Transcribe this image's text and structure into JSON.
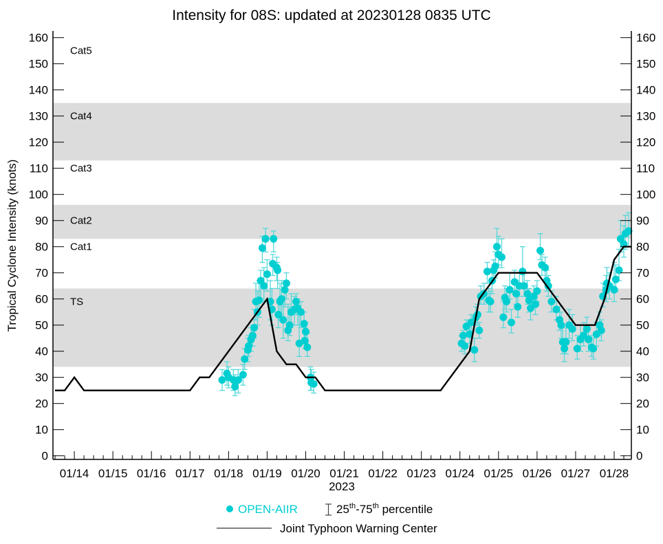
{
  "chart_data": {
    "type": "scatter",
    "title": "Intensity for 08S: updated at 20230128 0835 UTC",
    "ylabel": "Tropical Cyclone Intensity (knots)",
    "xlabel": "2023",
    "ylim": [
      0,
      160
    ],
    "yticks": [
      0,
      10,
      20,
      30,
      40,
      50,
      60,
      70,
      80,
      90,
      100,
      110,
      120,
      130,
      140,
      150,
      160
    ],
    "x_units": "hours since 2023-01-14 00 UTC",
    "xlim": [
      -13.3,
      346.7
    ],
    "xticks": [
      {
        "h": 0,
        "label": "01/14"
      },
      {
        "h": 24,
        "label": "01/15"
      },
      {
        "h": 48,
        "label": "01/16"
      },
      {
        "h": 72,
        "label": "01/17"
      },
      {
        "h": 96,
        "label": "01/18"
      },
      {
        "h": 120,
        "label": "01/19"
      },
      {
        "h": 144,
        "label": "01/20"
      },
      {
        "h": 168,
        "label": "01/21"
      },
      {
        "h": 192,
        "label": "01/22"
      },
      {
        "h": 216,
        "label": "01/23"
      },
      {
        "h": 240,
        "label": "01/24"
      },
      {
        "h": 264,
        "label": "01/25"
      },
      {
        "h": 288,
        "label": "01/26"
      },
      {
        "h": 312,
        "label": "01/27"
      },
      {
        "h": 336,
        "label": "01/28"
      }
    ],
    "bands": [
      {
        "label": "Cat5",
        "range": [
          135,
          160
        ],
        "shaded": false,
        "label_at": 155
      },
      {
        "label": "Cat4",
        "range": [
          113,
          135
        ],
        "shaded": true,
        "label_at": 130
      },
      {
        "label": "Cat3",
        "range": [
          96,
          113
        ],
        "shaded": false,
        "label_at": 110
      },
      {
        "label": "Cat2",
        "range": [
          83,
          96
        ],
        "shaded": true,
        "label_at": 90
      },
      {
        "label": "Cat1",
        "range": [
          64,
          83
        ],
        "shaded": false,
        "label_at": 80
      },
      {
        "label": "TS",
        "range": [
          34,
          64
        ],
        "shaded": true,
        "label_at": 59
      }
    ],
    "colors": {
      "aiir": "#00CED1",
      "aiir_err": "#55D8DA",
      "jtwc": "#000000",
      "band": "#DCDCDC"
    },
    "series": [
      {
        "name": "OPEN-AIIR",
        "kind": "points [hour, median, p25, p75]",
        "points": [
          [
            92,
            29,
            25,
            33
          ],
          [
            95,
            31.5,
            27,
            36
          ],
          [
            96,
            30,
            26,
            34
          ],
          [
            99,
            29,
            25,
            33
          ],
          [
            100,
            26.5,
            23,
            31
          ],
          [
            102,
            29,
            24,
            33
          ],
          [
            105,
            31,
            27,
            35
          ],
          [
            106,
            37,
            33,
            41
          ],
          [
            108,
            40.5,
            36,
            45
          ],
          [
            108.5,
            42,
            38,
            46
          ],
          [
            110,
            44.5,
            40,
            49
          ],
          [
            111,
            46,
            42,
            50
          ],
          [
            112,
            49,
            45,
            56
          ],
          [
            114,
            55,
            50,
            63
          ],
          [
            113,
            59,
            52,
            66
          ],
          [
            115,
            59.5,
            53,
            67
          ],
          [
            116,
            67,
            60,
            71
          ],
          [
            118,
            65,
            59,
            72
          ],
          [
            117,
            79.5,
            74,
            84
          ],
          [
            119,
            83,
            78,
            87
          ],
          [
            120,
            69.5,
            63,
            75
          ],
          [
            122,
            59,
            52,
            67
          ],
          [
            123,
            56,
            50,
            64
          ],
          [
            124,
            83,
            78,
            86
          ],
          [
            123.5,
            73.5,
            69,
            77
          ],
          [
            126,
            72,
            67,
            76
          ],
          [
            126.5,
            71,
            64,
            74
          ],
          [
            127,
            54,
            49,
            60
          ],
          [
            128,
            59,
            52,
            66
          ],
          [
            129,
            60,
            54,
            67
          ],
          [
            130,
            52,
            45,
            58
          ],
          [
            131,
            63.5,
            57,
            67
          ],
          [
            132,
            66,
            60,
            70
          ],
          [
            134,
            50,
            46,
            57
          ],
          [
            133,
            48,
            44,
            58
          ],
          [
            135,
            55,
            49,
            62
          ],
          [
            137,
            56,
            50,
            61
          ],
          [
            138,
            59,
            54,
            62
          ],
          [
            139,
            56.5,
            50,
            60
          ],
          [
            141,
            55,
            49,
            59
          ],
          [
            140,
            43,
            38,
            55
          ],
          [
            143,
            50.5,
            45,
            55
          ],
          [
            143.5,
            44,
            41,
            49
          ],
          [
            144,
            47.5,
            43,
            51
          ],
          [
            145,
            41.5,
            38,
            47
          ],
          [
            147,
            30,
            25,
            34
          ],
          [
            147.5,
            28,
            25,
            33
          ],
          [
            149,
            27.5,
            24,
            32
          ],
          [
            241,
            43,
            40,
            46
          ],
          [
            242,
            46,
            42,
            48
          ],
          [
            243,
            42,
            39,
            46
          ],
          [
            244,
            49.5,
            46,
            52
          ],
          [
            246,
            46.5,
            43,
            49
          ],
          [
            247,
            51,
            48,
            54
          ],
          [
            249,
            40.5,
            36,
            45
          ],
          [
            250,
            53,
            50,
            57
          ],
          [
            251,
            54,
            50,
            58
          ],
          [
            252,
            48,
            45,
            51
          ],
          [
            253,
            61,
            58,
            65
          ],
          [
            255,
            62,
            58,
            66
          ],
          [
            257,
            70.5,
            66,
            74
          ],
          [
            258,
            59.5,
            55,
            64
          ],
          [
            259,
            59,
            55,
            63
          ],
          [
            260,
            67,
            62,
            71
          ],
          [
            261,
            71,
            67,
            75
          ],
          [
            262,
            72.5,
            68,
            78
          ],
          [
            263,
            80,
            77,
            87
          ],
          [
            264,
            77,
            73,
            84
          ],
          [
            266,
            76,
            72,
            83
          ],
          [
            267,
            53,
            49,
            59
          ],
          [
            268,
            60.5,
            56,
            65
          ],
          [
            269,
            59,
            55,
            64
          ],
          [
            271,
            63.5,
            60,
            70
          ],
          [
            272,
            51,
            47,
            56
          ],
          [
            274,
            66.5,
            63,
            71
          ],
          [
            275,
            62,
            58,
            67
          ],
          [
            276,
            57,
            53,
            62
          ],
          [
            277,
            65,
            61,
            70
          ],
          [
            279,
            70.5,
            66,
            80
          ],
          [
            280,
            65,
            61,
            70
          ],
          [
            282,
            62,
            58,
            67
          ],
          [
            283,
            59.5,
            55,
            64
          ],
          [
            284,
            56.5,
            52,
            61
          ],
          [
            286,
            61,
            57,
            65
          ],
          [
            287,
            58,
            54,
            62
          ],
          [
            288,
            63,
            59,
            67
          ],
          [
            290,
            78.5,
            75,
            85
          ],
          [
            291,
            73,
            69,
            77
          ],
          [
            293,
            72,
            67,
            76
          ],
          [
            294,
            67,
            63,
            71
          ],
          [
            295,
            65,
            61,
            69
          ],
          [
            297,
            59,
            55,
            63
          ],
          [
            300,
            56,
            52,
            61
          ],
          [
            302,
            52,
            48,
            57
          ],
          [
            303,
            50,
            45,
            55
          ],
          [
            304,
            43.5,
            39,
            49
          ],
          [
            305,
            41,
            36,
            45
          ],
          [
            306,
            43.5,
            39,
            49
          ],
          [
            308,
            50,
            45,
            56
          ],
          [
            310,
            48.5,
            44,
            54
          ],
          [
            313,
            41,
            37,
            46
          ],
          [
            315,
            44.5,
            40,
            50
          ],
          [
            317,
            46,
            42,
            51
          ],
          [
            319,
            48.5,
            44,
            53
          ],
          [
            320,
            44.5,
            40,
            49
          ],
          [
            322,
            41.5,
            38,
            46
          ],
          [
            323,
            41,
            37,
            45
          ],
          [
            325,
            46.5,
            42,
            51
          ],
          [
            327,
            50,
            46,
            55
          ],
          [
            328,
            48,
            44,
            52
          ],
          [
            329,
            61,
            57,
            66
          ],
          [
            331,
            63.5,
            59,
            69
          ],
          [
            331.5,
            66,
            62,
            72
          ],
          [
            333,
            65,
            60,
            70
          ],
          [
            336,
            63.5,
            59,
            74
          ],
          [
            337,
            67.5,
            63,
            73
          ],
          [
            339,
            71,
            67,
            79
          ],
          [
            340,
            83,
            78,
            90
          ],
          [
            342,
            81,
            76,
            88
          ],
          [
            343,
            85,
            79,
            92
          ],
          [
            345,
            86,
            80,
            93
          ]
        ]
      },
      {
        "name": "Joint Typhoon Warning Center",
        "kind": "line [hour, knots]",
        "points": [
          [
            -12,
            25
          ],
          [
            -6,
            25
          ],
          [
            0,
            30
          ],
          [
            6,
            25
          ],
          [
            72,
            25
          ],
          [
            78,
            30
          ],
          [
            84,
            30
          ],
          [
            120,
            60
          ],
          [
            126,
            40
          ],
          [
            132,
            35
          ],
          [
            138,
            35
          ],
          [
            144,
            30
          ],
          [
            150,
            30
          ],
          [
            156,
            25
          ],
          [
            228,
            25
          ],
          [
            246,
            40
          ],
          [
            252,
            60
          ],
          [
            264,
            70
          ],
          [
            288,
            70
          ],
          [
            312,
            50
          ],
          [
            324,
            50
          ],
          [
            330,
            60
          ],
          [
            336,
            75
          ],
          [
            342,
            80
          ],
          [
            346.7,
            80
          ]
        ]
      }
    ],
    "legend": {
      "aiir_label": "OPEN-AIIR",
      "pct_25": "25",
      "pct_th1": "th",
      "pct_dash": "-75",
      "pct_th2": "th",
      "pct_rest": " percentile",
      "jtwc_label": "Joint Typhoon Warning Center",
      "placement": "bottom-center"
    }
  }
}
